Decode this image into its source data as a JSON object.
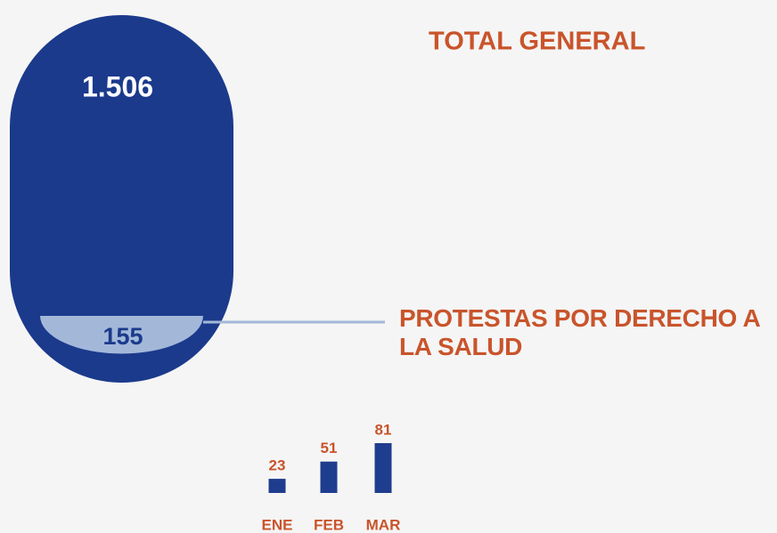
{
  "chart_data": [
    {
      "type": "proportion",
      "categories": [
        "TOTAL GENERAL",
        "PROTESTAS POR DERECHO A LA SALUD"
      ],
      "values": [
        1506,
        155
      ],
      "value_labels": [
        "1.506",
        "155"
      ],
      "colors": [
        "#1b3a8c",
        "#a3b8d9"
      ]
    },
    {
      "type": "bar",
      "categories": [
        "ENE",
        "FEB",
        "MAR"
      ],
      "values": [
        23,
        51,
        81
      ],
      "color": "#1f3d8e"
    }
  ]
}
